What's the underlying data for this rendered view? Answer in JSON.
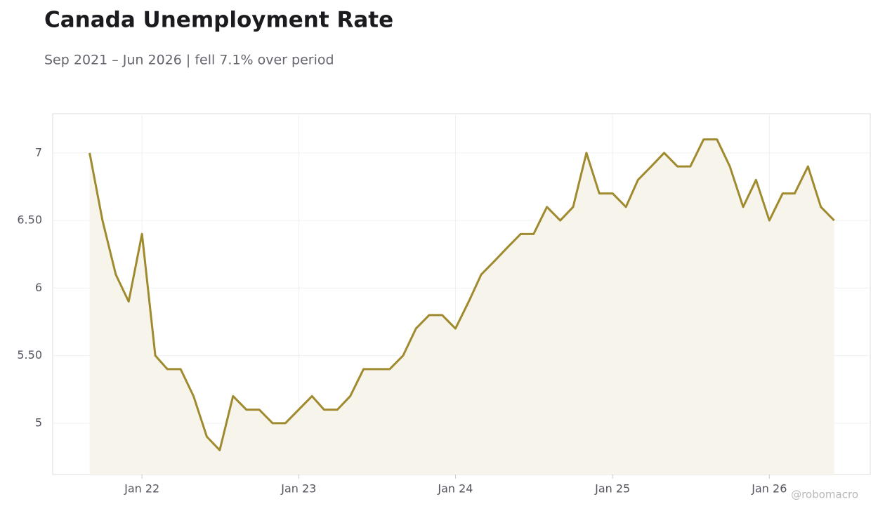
{
  "chart_data": {
    "type": "line",
    "title": "Canada Unemployment Rate",
    "subtitle": "Sep 2021 – Jun 2026 | fell 7.1% over period",
    "watermark": "@robomacro",
    "x": [
      "2021-09",
      "2021-10",
      "2021-11",
      "2021-12",
      "2022-01",
      "2022-02",
      "2022-03",
      "2022-04",
      "2022-05",
      "2022-06",
      "2022-07",
      "2022-08",
      "2022-09",
      "2022-10",
      "2022-11",
      "2022-12",
      "2023-01",
      "2023-02",
      "2023-03",
      "2023-04",
      "2023-05",
      "2023-06",
      "2023-07",
      "2023-08",
      "2023-09",
      "2023-10",
      "2023-11",
      "2023-12",
      "2024-01",
      "2024-02",
      "2024-03",
      "2024-04",
      "2024-05",
      "2024-06",
      "2024-07",
      "2024-08",
      "2024-09",
      "2024-10",
      "2024-11",
      "2024-12",
      "2025-01",
      "2025-02",
      "2025-03",
      "2025-04",
      "2025-05",
      "2025-06",
      "2025-07",
      "2025-08",
      "2025-09",
      "2025-10",
      "2025-11",
      "2025-12",
      "2026-01",
      "2026-02",
      "2026-03",
      "2026-04",
      "2026-05",
      "2026-06"
    ],
    "series": [
      {
        "name": "Unemployment Rate",
        "color": "#a08a2e",
        "values": [
          7.0,
          6.5,
          6.1,
          5.9,
          6.4,
          5.5,
          5.4,
          5.4,
          5.2,
          4.9,
          4.8,
          5.2,
          5.1,
          5.1,
          5.0,
          5.0,
          5.1,
          5.2,
          5.1,
          5.1,
          5.2,
          5.4,
          5.4,
          5.4,
          5.5,
          5.7,
          5.8,
          5.8,
          5.7,
          5.9,
          6.1,
          6.2,
          6.3,
          6.4,
          6.4,
          6.6,
          6.5,
          6.6,
          7.0,
          6.7,
          6.7,
          6.6,
          6.8,
          6.9,
          7.0,
          6.9,
          6.9,
          7.1,
          7.1,
          6.9,
          6.6,
          6.8,
          6.5,
          6.7,
          6.7,
          6.9,
          6.6,
          6.5
        ]
      }
    ],
    "area_color": "#f7f4ec",
    "xlim": [
      "2021-06-07",
      "2026-08-24"
    ],
    "xticks": [
      {
        "value": "2022-01",
        "label": "Jan 22"
      },
      {
        "value": "2023-01",
        "label": "Jan 23"
      },
      {
        "value": "2024-01",
        "label": "Jan 24"
      },
      {
        "value": "2025-01",
        "label": "Jan 25"
      },
      {
        "value": "2026-01",
        "label": "Jan 26"
      }
    ],
    "ylim": [
      4.62,
      7.29
    ],
    "yticks": [
      5,
      {
        "value": 5.5,
        "label": "5.50"
      },
      6,
      {
        "value": 6.5,
        "label": "6.50"
      },
      7
    ],
    "grid": true
  }
}
